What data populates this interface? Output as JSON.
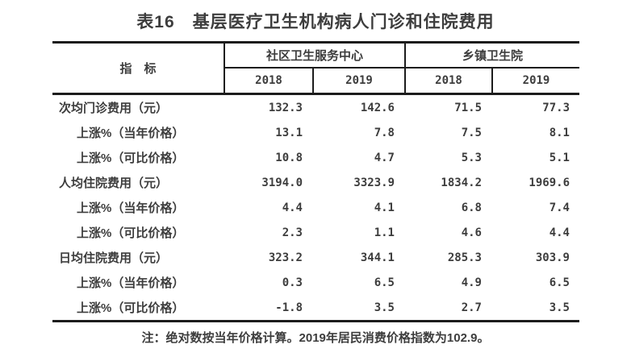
{
  "title": "表16　基层医疗卫生机构病人门诊和住院费用",
  "table": {
    "indicator_header": "指　标",
    "groups": [
      {
        "label": "社区卫生服务中心",
        "years": [
          "2018",
          "2019"
        ]
      },
      {
        "label": "乡镇卫生院",
        "years": [
          "2018",
          "2019"
        ]
      }
    ],
    "rows": [
      {
        "label": "次均门诊费用（元）",
        "indent": false,
        "values": [
          "132.3",
          "142.6",
          "71.5",
          "77.3"
        ]
      },
      {
        "label": "上涨%（当年价格）",
        "indent": true,
        "values": [
          "13.1",
          "7.8",
          "7.5",
          "8.1"
        ]
      },
      {
        "label": "上涨%（可比价格）",
        "indent": true,
        "values": [
          "10.8",
          "4.7",
          "5.3",
          "5.1"
        ]
      },
      {
        "label": "人均住院费用（元）",
        "indent": false,
        "values": [
          "3194.0",
          "3323.9",
          "1834.2",
          "1969.6"
        ]
      },
      {
        "label": "上涨%（当年价格）",
        "indent": true,
        "values": [
          "4.4",
          "4.1",
          "6.8",
          "7.4"
        ]
      },
      {
        "label": "上涨%（可比价格）",
        "indent": true,
        "values": [
          "2.3",
          "1.1",
          "4.6",
          "4.4"
        ]
      },
      {
        "label": "日均住院费用（元）",
        "indent": false,
        "values": [
          "323.2",
          "344.1",
          "285.3",
          "303.9"
        ]
      },
      {
        "label": "上涨%（当年价格）",
        "indent": true,
        "values": [
          "0.3",
          "6.5",
          "4.9",
          "6.5"
        ]
      },
      {
        "label": "上涨%（可比价格）",
        "indent": true,
        "values": [
          "-1.8",
          "3.5",
          "2.7",
          "3.5"
        ]
      }
    ]
  },
  "note": "注：绝对数按当年价格计算。2019年居民消费价格指数为102.9。",
  "colors": {
    "text": "#3d3d3d",
    "line": "#1c1c1c",
    "background": "#ffffff"
  }
}
